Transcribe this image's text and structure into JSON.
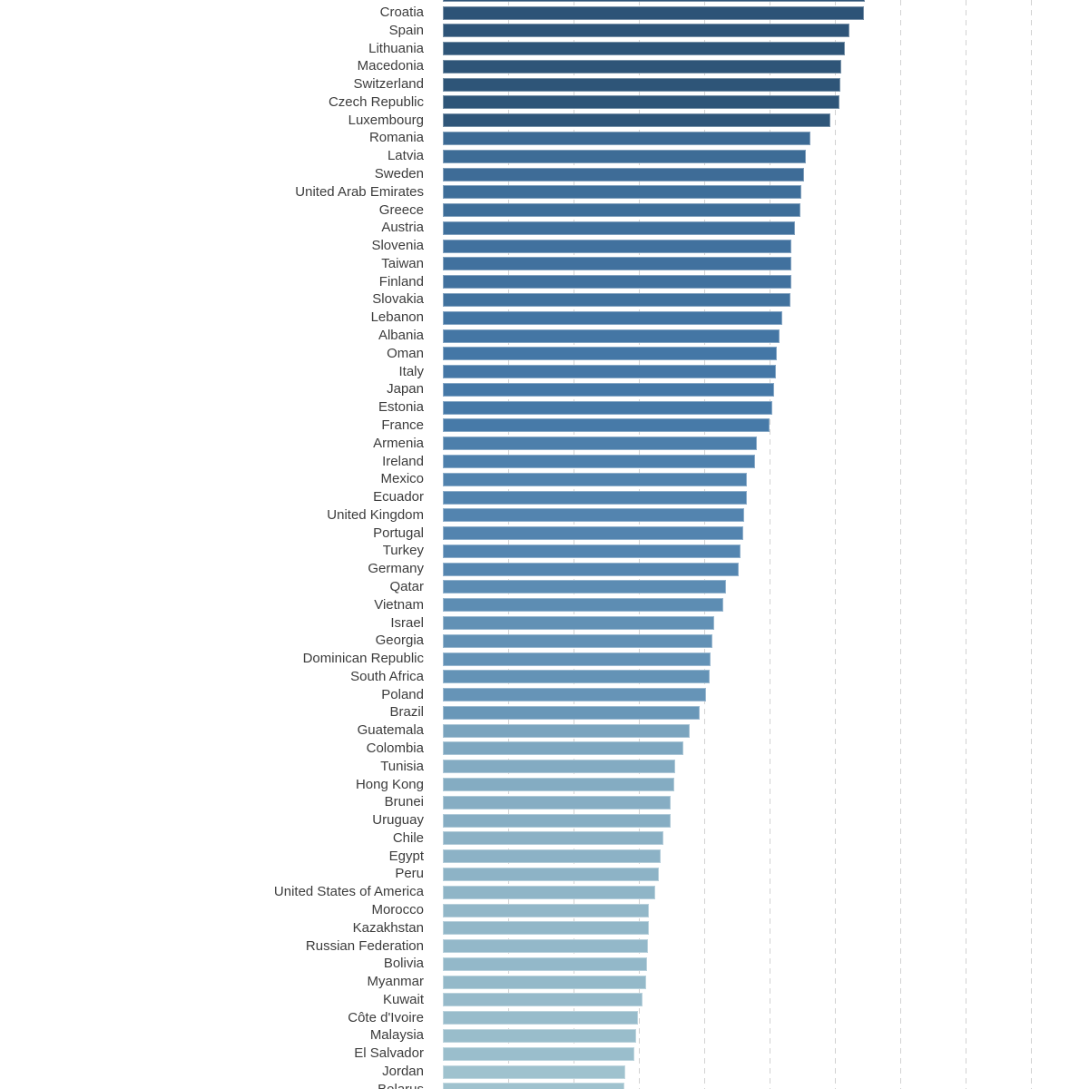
{
  "chart_data": {
    "type": "bar",
    "orientation": "horizontal",
    "title": "",
    "xlabel": "",
    "ylabel": "",
    "axis_tick_labels_visible": false,
    "note_unit": "axis scale cropped out of screenshot; values recorded as bar length in screen pixels",
    "legend": null,
    "grid": "vertical-dashed",
    "categories": [
      "",
      "Croatia",
      "Spain",
      "Lithuania",
      "Macedonia",
      "Switzerland",
      "Czech Republic",
      "Luxembourg",
      "Romania",
      "Latvia",
      "Sweden",
      "United Arab Emirates",
      "Greece",
      "Austria",
      "Slovenia",
      "Taiwan",
      "Finland",
      "Slovakia",
      "Lebanon",
      "Albania",
      "Oman",
      "Italy",
      "Japan",
      "Estonia",
      "France",
      "Armenia",
      "Ireland",
      "Mexico",
      "Ecuador",
      "United Kingdom",
      "Portugal",
      "Turkey",
      "Germany",
      "Qatar",
      "Vietnam",
      "Israel",
      "Georgia",
      "Dominican Republic",
      "South Africa",
      "Poland",
      "Brazil",
      "Guatemala",
      "Colombia",
      "Tunisia",
      "Hong Kong",
      "Brunei",
      "Uruguay",
      "Chile",
      "Egypt",
      "Peru",
      "United States of America",
      "Morocco",
      "Kazakhstan",
      "Russian Federation",
      "Bolivia",
      "Myanmar",
      "Kuwait",
      "Côte d'Ivoire",
      "Malaysia",
      "El Salvador",
      "Jordan",
      "Belarus"
    ],
    "values": [
      465,
      464,
      448,
      443,
      439,
      438,
      437,
      427,
      405,
      400,
      398,
      395,
      394,
      388,
      384,
      384,
      384,
      383,
      374,
      371,
      368,
      367,
      365,
      363,
      360,
      346,
      344,
      335,
      335,
      332,
      331,
      328,
      326,
      312,
      309,
      299,
      297,
      295,
      294,
      290,
      283,
      272,
      265,
      256,
      255,
      251,
      251,
      243,
      240,
      238,
      234,
      227,
      227,
      226,
      225,
      224,
      220,
      215,
      213,
      211,
      201,
      200
    ],
    "first_row_partially_cropped_top": true,
    "last_row_partially_cropped_bottom": true
  },
  "style": {
    "background": "#ffffff",
    "label_color": "#3c3c3c",
    "gridline_color": "#d2d2d2",
    "bar_color_stops": [
      {
        "value": 465,
        "color": "#2d5377"
      },
      {
        "value": 427,
        "color": "#2f5679"
      },
      {
        "value": 405,
        "color": "#3c6a94"
      },
      {
        "value": 365,
        "color": "#4578a7"
      },
      {
        "value": 326,
        "color": "#5586b0"
      },
      {
        "value": 283,
        "color": "#6997b8"
      },
      {
        "value": 272,
        "color": "#7aa4be"
      },
      {
        "value": 243,
        "color": "#8bb1c5"
      },
      {
        "value": 200,
        "color": "#9fc2ce"
      }
    ]
  }
}
